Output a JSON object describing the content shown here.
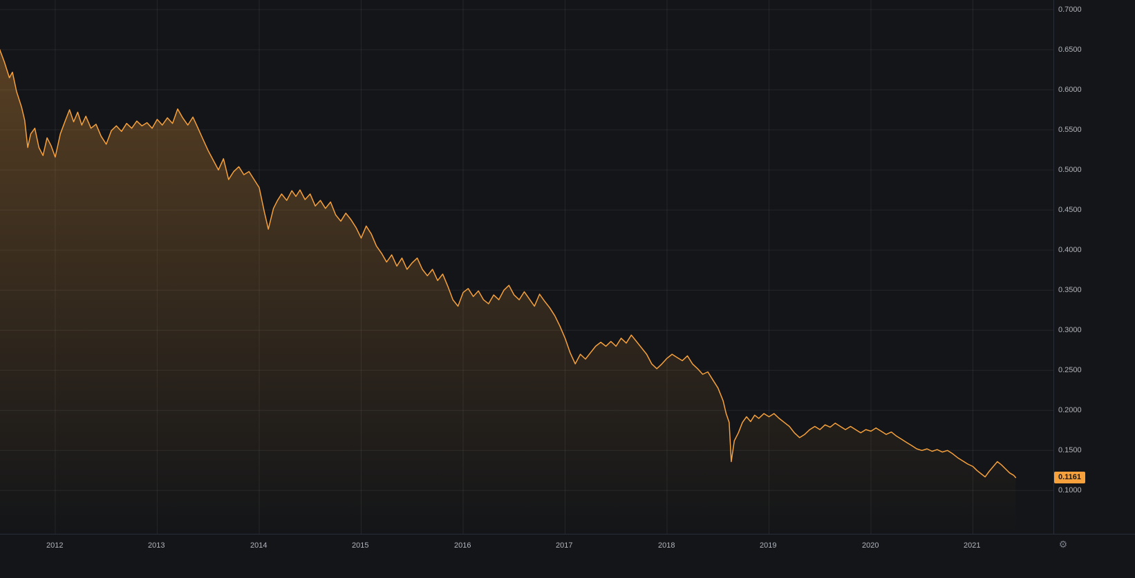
{
  "chart_data": {
    "type": "area",
    "title": "",
    "xlabel": "",
    "ylabel": "",
    "legend": "none",
    "grid": true,
    "last_price": 0.1161,
    "last_price_label": "0.1161",
    "line_color": "#f7a13d",
    "area_fill_top": "rgba(247,161,61,0.30)",
    "area_fill_bottom": "rgba(247,161,61,0.0)",
    "grid_color": "rgba(255,255,255,0.07)",
    "background_color": "#131518",
    "axis_text_color": "#b2b5be",
    "badge_color": "#f7a13d",
    "x_range": [
      2011.458,
      2021.79
    ],
    "y_range": [
      0.046,
      0.712
    ],
    "x_ticks": {
      "values": [
        2012,
        2013,
        2014,
        2015,
        2016,
        2017,
        2018,
        2019,
        2020,
        2021
      ],
      "labels": [
        "2012",
        "2013",
        "2014",
        "2015",
        "2016",
        "2017",
        "2018",
        "2019",
        "2020",
        "2021"
      ]
    },
    "y_ticks": {
      "values": [
        0.7,
        0.65,
        0.6,
        0.55,
        0.5,
        0.45,
        0.4,
        0.35,
        0.3,
        0.25,
        0.2,
        0.15,
        0.1
      ],
      "labels": [
        "0.7000",
        "0.6500",
        "0.6000",
        "0.5500",
        "0.5000",
        "0.4500",
        "0.4000",
        "0.3500",
        "0.3000",
        "0.2500",
        "0.2000",
        "0.1500",
        "0.1000"
      ]
    },
    "series": [
      {
        "name": "price",
        "points": [
          [
            2011.45,
            0.652
          ],
          [
            2011.5,
            0.635
          ],
          [
            2011.55,
            0.615
          ],
          [
            2011.58,
            0.622
          ],
          [
            2011.62,
            0.598
          ],
          [
            2011.67,
            0.578
          ],
          [
            2011.7,
            0.562
          ],
          [
            2011.73,
            0.528
          ],
          [
            2011.76,
            0.545
          ],
          [
            2011.8,
            0.552
          ],
          [
            2011.84,
            0.528
          ],
          [
            2011.88,
            0.518
          ],
          [
            2011.92,
            0.54
          ],
          [
            2011.96,
            0.53
          ],
          [
            2012.0,
            0.516
          ],
          [
            2012.05,
            0.545
          ],
          [
            2012.1,
            0.562
          ],
          [
            2012.14,
            0.575
          ],
          [
            2012.18,
            0.56
          ],
          [
            2012.22,
            0.572
          ],
          [
            2012.26,
            0.556
          ],
          [
            2012.3,
            0.567
          ],
          [
            2012.35,
            0.552
          ],
          [
            2012.4,
            0.557
          ],
          [
            2012.45,
            0.542
          ],
          [
            2012.5,
            0.532
          ],
          [
            2012.55,
            0.549
          ],
          [
            2012.6,
            0.555
          ],
          [
            2012.65,
            0.548
          ],
          [
            2012.7,
            0.558
          ],
          [
            2012.75,
            0.552
          ],
          [
            2012.8,
            0.561
          ],
          [
            2012.85,
            0.555
          ],
          [
            2012.9,
            0.559
          ],
          [
            2012.95,
            0.552
          ],
          [
            2013.0,
            0.563
          ],
          [
            2013.05,
            0.556
          ],
          [
            2013.1,
            0.565
          ],
          [
            2013.15,
            0.558
          ],
          [
            2013.2,
            0.576
          ],
          [
            2013.25,
            0.565
          ],
          [
            2013.3,
            0.556
          ],
          [
            2013.35,
            0.566
          ],
          [
            2013.4,
            0.552
          ],
          [
            2013.45,
            0.538
          ],
          [
            2013.5,
            0.524
          ],
          [
            2013.55,
            0.512
          ],
          [
            2013.6,
            0.5
          ],
          [
            2013.65,
            0.514
          ],
          [
            2013.7,
            0.488
          ],
          [
            2013.75,
            0.498
          ],
          [
            2013.8,
            0.504
          ],
          [
            2013.85,
            0.494
          ],
          [
            2013.9,
            0.498
          ],
          [
            2013.95,
            0.488
          ],
          [
            2014.0,
            0.478
          ],
          [
            2014.05,
            0.448
          ],
          [
            2014.09,
            0.426
          ],
          [
            2014.14,
            0.452
          ],
          [
            2014.18,
            0.462
          ],
          [
            2014.22,
            0.47
          ],
          [
            2014.27,
            0.462
          ],
          [
            2014.32,
            0.474
          ],
          [
            2014.36,
            0.467
          ],
          [
            2014.4,
            0.475
          ],
          [
            2014.45,
            0.463
          ],
          [
            2014.5,
            0.47
          ],
          [
            2014.55,
            0.455
          ],
          [
            2014.6,
            0.462
          ],
          [
            2014.65,
            0.452
          ],
          [
            2014.7,
            0.46
          ],
          [
            2014.75,
            0.444
          ],
          [
            2014.8,
            0.436
          ],
          [
            2014.85,
            0.446
          ],
          [
            2014.9,
            0.438
          ],
          [
            2014.95,
            0.428
          ],
          [
            2015.0,
            0.415
          ],
          [
            2015.05,
            0.43
          ],
          [
            2015.1,
            0.42
          ],
          [
            2015.15,
            0.405
          ],
          [
            2015.2,
            0.396
          ],
          [
            2015.25,
            0.385
          ],
          [
            2015.3,
            0.394
          ],
          [
            2015.35,
            0.38
          ],
          [
            2015.4,
            0.39
          ],
          [
            2015.45,
            0.376
          ],
          [
            2015.5,
            0.384
          ],
          [
            2015.55,
            0.39
          ],
          [
            2015.6,
            0.376
          ],
          [
            2015.65,
            0.368
          ],
          [
            2015.7,
            0.376
          ],
          [
            2015.75,
            0.362
          ],
          [
            2015.8,
            0.37
          ],
          [
            2015.85,
            0.355
          ],
          [
            2015.9,
            0.338
          ],
          [
            2015.95,
            0.33
          ],
          [
            2016.0,
            0.347
          ],
          [
            2016.05,
            0.352
          ],
          [
            2016.1,
            0.342
          ],
          [
            2016.15,
            0.349
          ],
          [
            2016.2,
            0.338
          ],
          [
            2016.25,
            0.333
          ],
          [
            2016.3,
            0.344
          ],
          [
            2016.35,
            0.338
          ],
          [
            2016.4,
            0.35
          ],
          [
            2016.45,
            0.356
          ],
          [
            2016.5,
            0.344
          ],
          [
            2016.55,
            0.338
          ],
          [
            2016.6,
            0.348
          ],
          [
            2016.65,
            0.339
          ],
          [
            2016.7,
            0.33
          ],
          [
            2016.75,
            0.345
          ],
          [
            2016.8,
            0.336
          ],
          [
            2016.85,
            0.328
          ],
          [
            2016.9,
            0.318
          ],
          [
            2016.95,
            0.305
          ],
          [
            2017.0,
            0.29
          ],
          [
            2017.05,
            0.272
          ],
          [
            2017.1,
            0.258
          ],
          [
            2017.15,
            0.27
          ],
          [
            2017.2,
            0.264
          ],
          [
            2017.25,
            0.272
          ],
          [
            2017.3,
            0.28
          ],
          [
            2017.35,
            0.285
          ],
          [
            2017.4,
            0.28
          ],
          [
            2017.45,
            0.286
          ],
          [
            2017.5,
            0.28
          ],
          [
            2017.55,
            0.29
          ],
          [
            2017.6,
            0.284
          ],
          [
            2017.65,
            0.294
          ],
          [
            2017.7,
            0.286
          ],
          [
            2017.75,
            0.278
          ],
          [
            2017.8,
            0.27
          ],
          [
            2017.85,
            0.258
          ],
          [
            2017.9,
            0.252
          ],
          [
            2017.95,
            0.258
          ],
          [
            2018.0,
            0.265
          ],
          [
            2018.05,
            0.27
          ],
          [
            2018.1,
            0.266
          ],
          [
            2018.15,
            0.262
          ],
          [
            2018.2,
            0.268
          ],
          [
            2018.25,
            0.258
          ],
          [
            2018.3,
            0.252
          ],
          [
            2018.35,
            0.245
          ],
          [
            2018.4,
            0.248
          ],
          [
            2018.45,
            0.238
          ],
          [
            2018.5,
            0.228
          ],
          [
            2018.55,
            0.212
          ],
          [
            2018.58,
            0.196
          ],
          [
            2018.61,
            0.185
          ],
          [
            2018.63,
            0.136
          ],
          [
            2018.66,
            0.162
          ],
          [
            2018.7,
            0.172
          ],
          [
            2018.74,
            0.185
          ],
          [
            2018.78,
            0.192
          ],
          [
            2018.82,
            0.186
          ],
          [
            2018.86,
            0.194
          ],
          [
            2018.9,
            0.19
          ],
          [
            2018.95,
            0.196
          ],
          [
            2019.0,
            0.192
          ],
          [
            2019.05,
            0.196
          ],
          [
            2019.1,
            0.19
          ],
          [
            2019.15,
            0.185
          ],
          [
            2019.2,
            0.18
          ],
          [
            2019.25,
            0.172
          ],
          [
            2019.3,
            0.166
          ],
          [
            2019.35,
            0.17
          ],
          [
            2019.4,
            0.176
          ],
          [
            2019.45,
            0.18
          ],
          [
            2019.5,
            0.176
          ],
          [
            2019.55,
            0.182
          ],
          [
            2019.6,
            0.179
          ],
          [
            2019.65,
            0.184
          ],
          [
            2019.7,
            0.18
          ],
          [
            2019.75,
            0.176
          ],
          [
            2019.8,
            0.18
          ],
          [
            2019.85,
            0.176
          ],
          [
            2019.9,
            0.172
          ],
          [
            2019.95,
            0.176
          ],
          [
            2020.0,
            0.174
          ],
          [
            2020.05,
            0.178
          ],
          [
            2020.1,
            0.174
          ],
          [
            2020.15,
            0.17
          ],
          [
            2020.2,
            0.173
          ],
          [
            2020.25,
            0.168
          ],
          [
            2020.3,
            0.164
          ],
          [
            2020.35,
            0.16
          ],
          [
            2020.4,
            0.156
          ],
          [
            2020.45,
            0.152
          ],
          [
            2020.5,
            0.15
          ],
          [
            2020.55,
            0.152
          ],
          [
            2020.6,
            0.149
          ],
          [
            2020.65,
            0.151
          ],
          [
            2020.7,
            0.148
          ],
          [
            2020.75,
            0.15
          ],
          [
            2020.8,
            0.146
          ],
          [
            2020.85,
            0.141
          ],
          [
            2020.9,
            0.137
          ],
          [
            2020.95,
            0.133
          ],
          [
            2021.0,
            0.13
          ],
          [
            2021.04,
            0.125
          ],
          [
            2021.08,
            0.121
          ],
          [
            2021.12,
            0.117
          ],
          [
            2021.16,
            0.124
          ],
          [
            2021.2,
            0.13
          ],
          [
            2021.24,
            0.136
          ],
          [
            2021.28,
            0.132
          ],
          [
            2021.32,
            0.127
          ],
          [
            2021.36,
            0.122
          ],
          [
            2021.4,
            0.119
          ],
          [
            2021.42,
            0.1161
          ]
        ]
      }
    ],
    "icons": {
      "settings_gear": "gear-icon"
    },
    "gear_glyph": "⚙"
  }
}
